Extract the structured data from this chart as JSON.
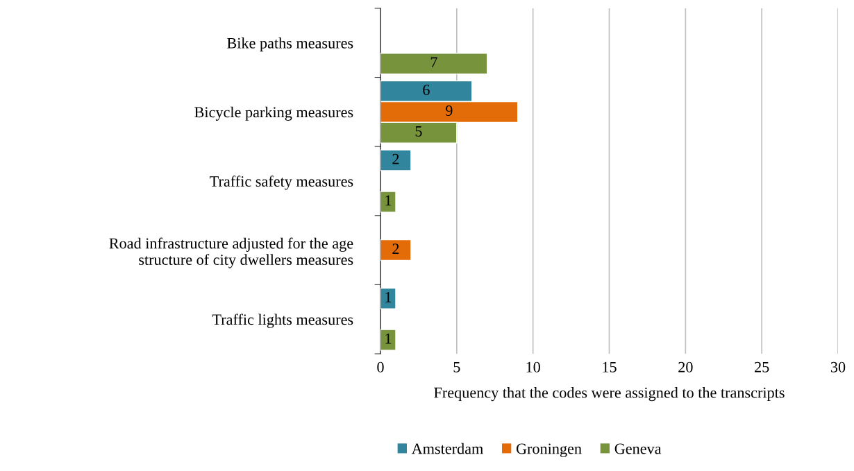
{
  "chart_data": {
    "type": "bar",
    "orientation": "horizontal",
    "categories": [
      "Bike paths measures",
      "Bicycle parking measures",
      "Traffic safety measures",
      "Road infrastructure adjusted for the age\nstructure of city dwellers measures",
      "Traffic lights measures"
    ],
    "series": [
      {
        "name": "Amsterdam",
        "color": "#31859c",
        "values": [
          null,
          6,
          2,
          null,
          1
        ]
      },
      {
        "name": "Groningen",
        "color": "#e36c09",
        "values": [
          null,
          9,
          null,
          2,
          null
        ]
      },
      {
        "name": "Geneva",
        "color": "#77933c",
        "values": [
          7,
          5,
          1,
          null,
          1
        ]
      }
    ],
    "xlabel": "Frequency that the codes were assigned to the transcripts",
    "xlim": [
      0,
      30
    ],
    "xticks": [
      0,
      5,
      10,
      15,
      20,
      25,
      30
    ],
    "grid": "x",
    "legend": "bottom",
    "data_labels": true
  }
}
